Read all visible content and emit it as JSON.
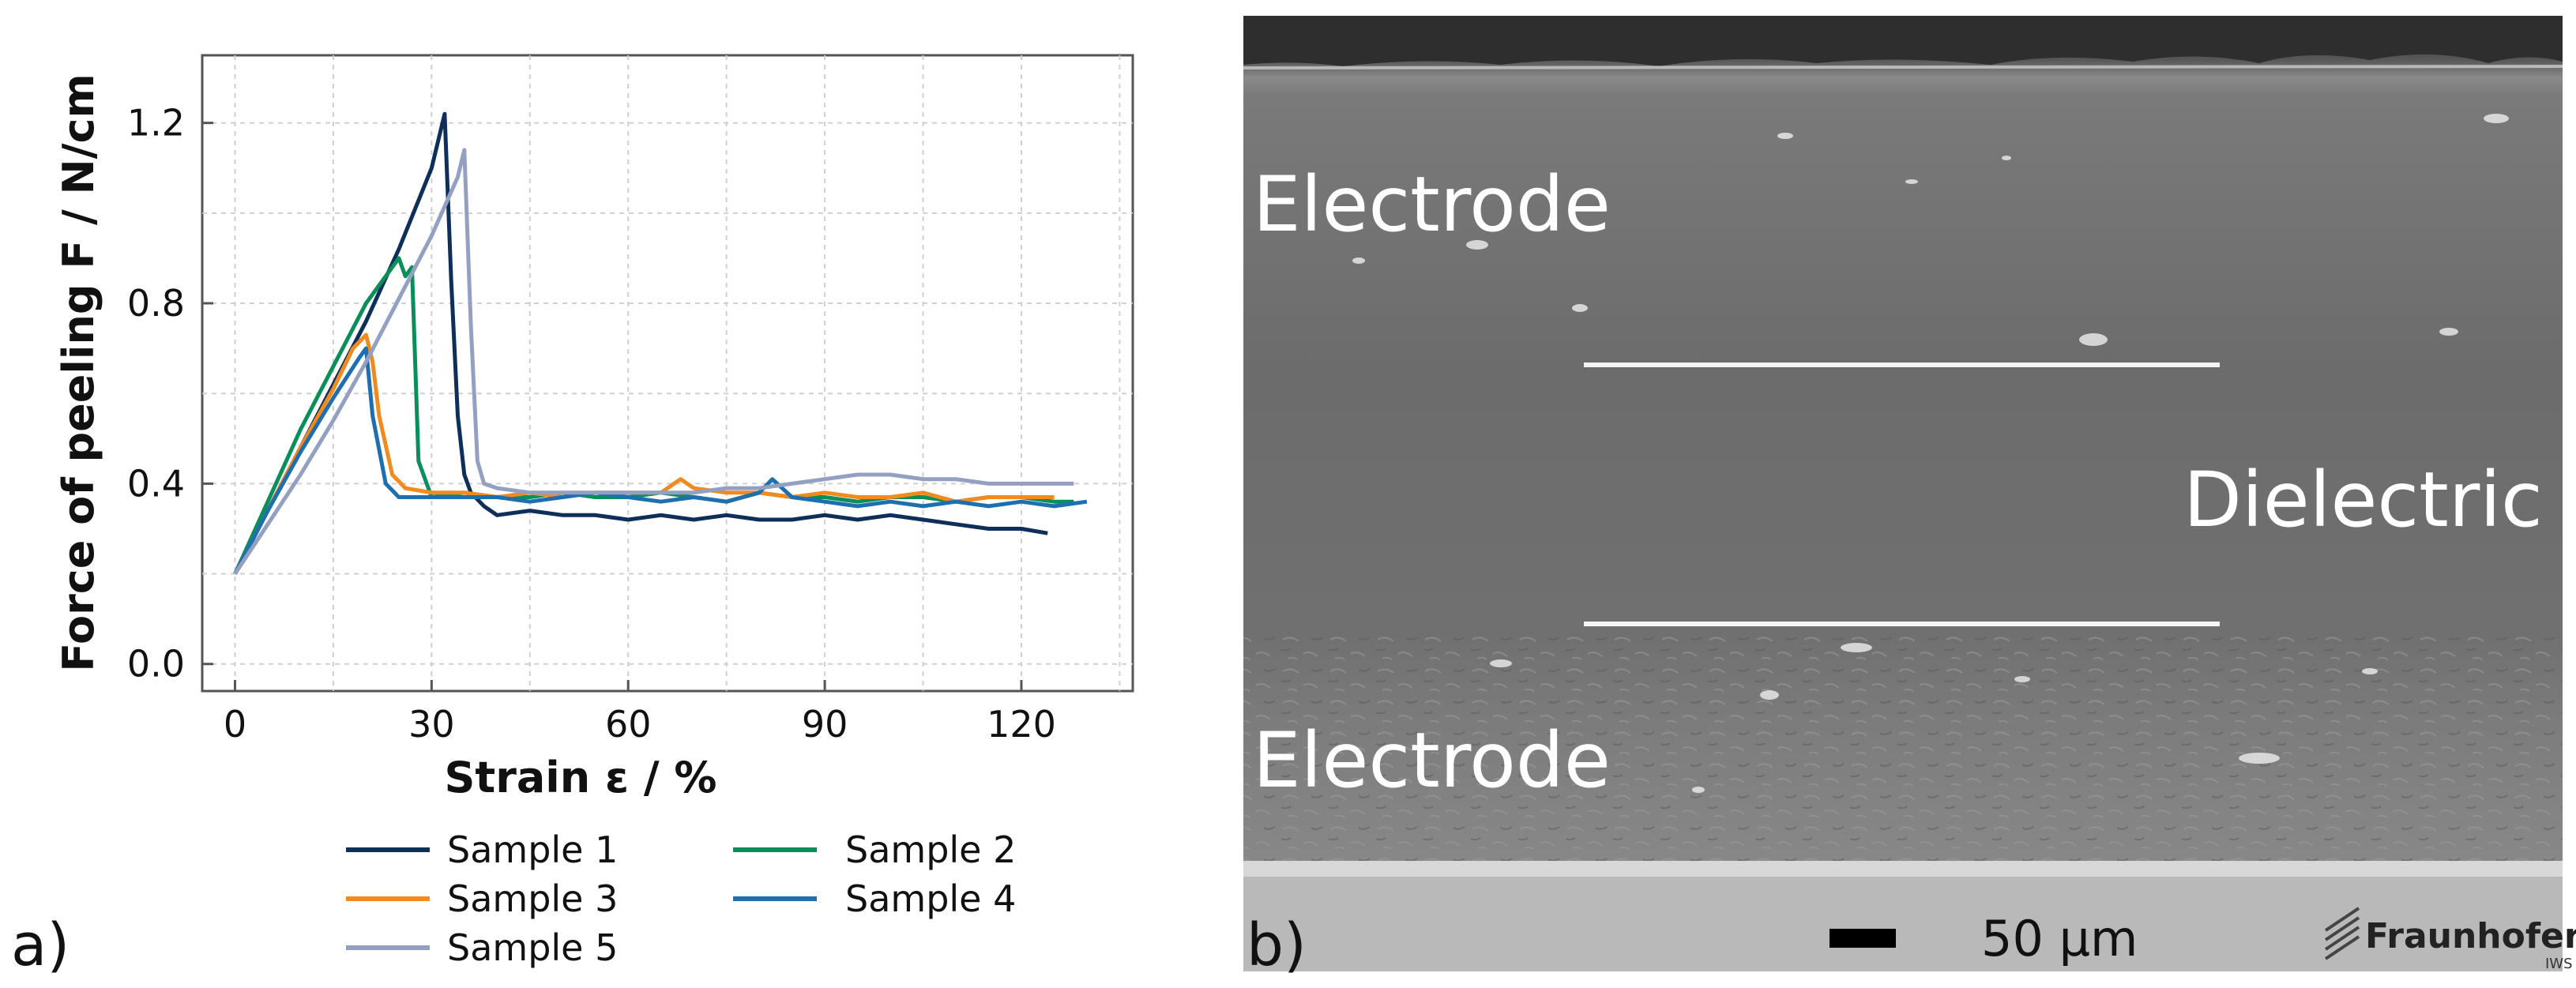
{
  "panel_a": {
    "label": "a)"
  },
  "panel_b": {
    "label": "b)",
    "layer_top": "Electrode",
    "layer_middle": "Dielectric",
    "layer_bottom": "Electrode",
    "scale_bar": "50 µm",
    "logo_name": "Fraunhofer",
    "logo_sub": "IWS"
  },
  "colors": {
    "sample1": "#0d2f5a",
    "sample2": "#0a8f5a",
    "sample3": "#f28a1e",
    "sample4": "#1d6fb0",
    "sample5": "#94a0c2"
  },
  "chart_data": {
    "type": "line",
    "title": "",
    "xlabel": "Strain ε / %",
    "ylabel": "Force of peeling F / N/cm",
    "xlim": [
      -5,
      137
    ],
    "ylim": [
      -0.06,
      1.35
    ],
    "xticks": [
      0,
      30,
      60,
      90,
      120
    ],
    "yticks": [
      0.0,
      0.4,
      0.8,
      1.2
    ],
    "xtick_labels": [
      "0",
      "30",
      "60",
      "90",
      "120"
    ],
    "ytick_labels": [
      "0.0",
      "0.4",
      "0.8",
      "1.2"
    ],
    "grid": true,
    "legend_position": "below",
    "series": [
      {
        "name": "Sample 1",
        "color": "#0d2f5a",
        "x": [
          0,
          5,
          10,
          15,
          20,
          25,
          30,
          32,
          33,
          34,
          35,
          36,
          38,
          40,
          45,
          50,
          55,
          60,
          65,
          70,
          75,
          80,
          85,
          90,
          95,
          100,
          105,
          110,
          115,
          120,
          124
        ],
        "y": [
          0.2,
          0.34,
          0.48,
          0.62,
          0.76,
          0.92,
          1.1,
          1.22,
          0.85,
          0.55,
          0.42,
          0.38,
          0.35,
          0.33,
          0.34,
          0.33,
          0.33,
          0.32,
          0.33,
          0.32,
          0.33,
          0.32,
          0.32,
          0.33,
          0.32,
          0.33,
          0.32,
          0.31,
          0.3,
          0.3,
          0.29
        ]
      },
      {
        "name": "Sample 2",
        "color": "#0a8f5a",
        "x": [
          0,
          5,
          10,
          15,
          20,
          24,
          25,
          26,
          27,
          28,
          30,
          35,
          40,
          45,
          50,
          55,
          60,
          65,
          70,
          75,
          80,
          85,
          90,
          95,
          100,
          105,
          110,
          115,
          120,
          125,
          128
        ],
        "y": [
          0.2,
          0.36,
          0.52,
          0.66,
          0.8,
          0.88,
          0.9,
          0.86,
          0.88,
          0.45,
          0.37,
          0.38,
          0.37,
          0.37,
          0.38,
          0.37,
          0.37,
          0.38,
          0.37,
          0.36,
          0.38,
          0.37,
          0.37,
          0.36,
          0.37,
          0.37,
          0.36,
          0.37,
          0.37,
          0.36,
          0.36
        ]
      },
      {
        "name": "Sample 3",
        "color": "#f28a1e",
        "x": [
          0,
          5,
          10,
          15,
          18,
          20,
          21,
          22,
          24,
          26,
          30,
          35,
          40,
          45,
          50,
          55,
          60,
          65,
          68,
          70,
          75,
          80,
          85,
          90,
          95,
          100,
          105,
          110,
          115,
          120,
          125
        ],
        "y": [
          0.2,
          0.34,
          0.48,
          0.61,
          0.7,
          0.73,
          0.67,
          0.55,
          0.42,
          0.39,
          0.38,
          0.38,
          0.37,
          0.38,
          0.37,
          0.38,
          0.38,
          0.38,
          0.41,
          0.39,
          0.38,
          0.38,
          0.37,
          0.38,
          0.37,
          0.37,
          0.38,
          0.36,
          0.37,
          0.37,
          0.37
        ]
      },
      {
        "name": "Sample 4",
        "color": "#1d6fb0",
        "x": [
          0,
          5,
          10,
          15,
          19,
          20,
          21,
          23,
          25,
          30,
          35,
          40,
          45,
          50,
          55,
          60,
          65,
          70,
          75,
          80,
          82,
          85,
          90,
          95,
          100,
          105,
          110,
          115,
          120,
          125,
          130
        ],
        "y": [
          0.2,
          0.34,
          0.47,
          0.59,
          0.68,
          0.7,
          0.55,
          0.4,
          0.37,
          0.37,
          0.37,
          0.37,
          0.36,
          0.37,
          0.38,
          0.37,
          0.36,
          0.37,
          0.36,
          0.38,
          0.41,
          0.37,
          0.36,
          0.35,
          0.36,
          0.35,
          0.36,
          0.35,
          0.36,
          0.35,
          0.36
        ]
      },
      {
        "name": "Sample 5",
        "color": "#94a0c2",
        "x": [
          0,
          5,
          10,
          15,
          20,
          25,
          30,
          34,
          35,
          36,
          37,
          38,
          40,
          45,
          50,
          55,
          60,
          65,
          70,
          75,
          80,
          85,
          90,
          95,
          100,
          105,
          110,
          115,
          120,
          125,
          128
        ],
        "y": [
          0.2,
          0.31,
          0.42,
          0.54,
          0.67,
          0.81,
          0.95,
          1.08,
          1.14,
          0.75,
          0.45,
          0.4,
          0.39,
          0.38,
          0.38,
          0.38,
          0.38,
          0.38,
          0.38,
          0.39,
          0.39,
          0.4,
          0.41,
          0.42,
          0.42,
          0.41,
          0.41,
          0.4,
          0.4,
          0.4,
          0.4
        ]
      }
    ]
  }
}
